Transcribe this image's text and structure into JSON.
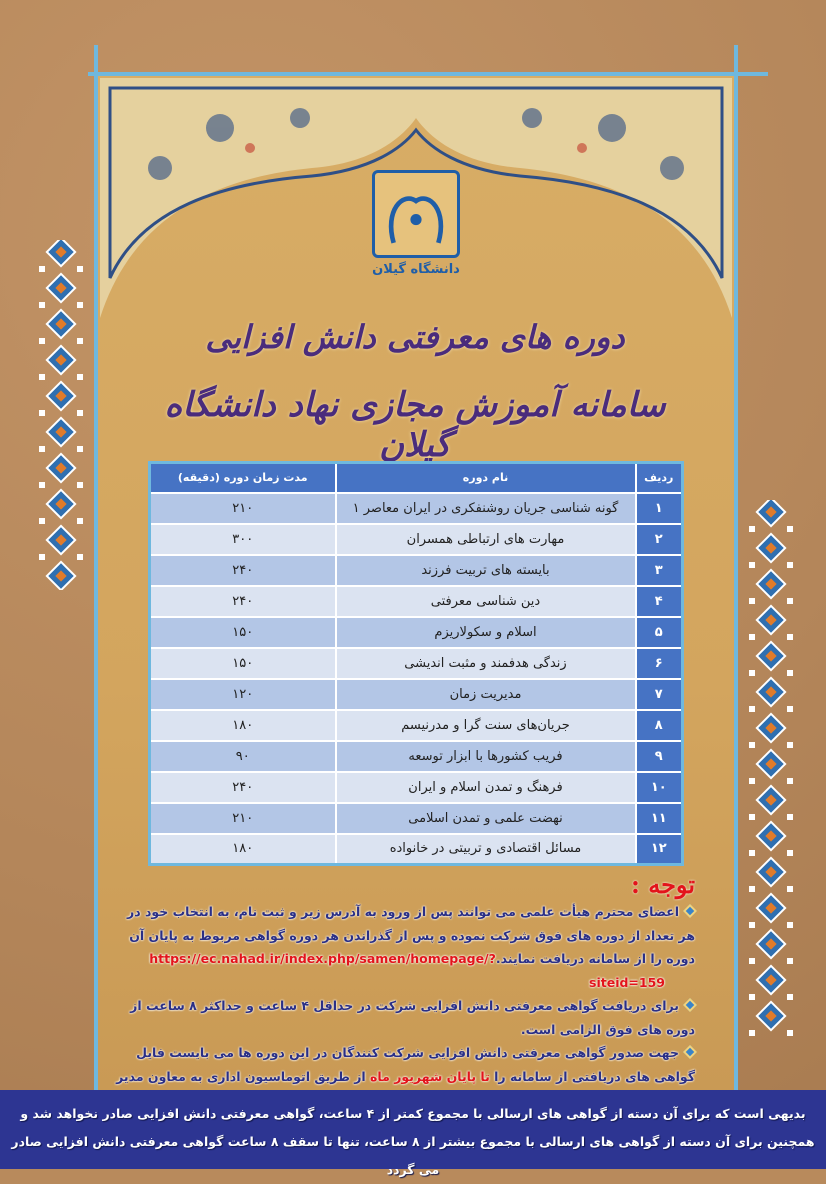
{
  "header": {
    "university_logo_text": "دانشگاه گیلان",
    "title_line1": "دوره های معرفتی دانش افزایی",
    "title_line2": "سامانه آموزش مجازی نهاد دانشگاه گیلان"
  },
  "table": {
    "columns": [
      "ردیف",
      "نام دوره",
      "مدت زمان دوره (دقیقه)"
    ],
    "rows": [
      {
        "num": "۱",
        "name": "گونه شناسی جریان روشنفکری در ایران معاصر ۱",
        "duration": "۲۱۰"
      },
      {
        "num": "۲",
        "name": "مهارت های ارتباطی همسران",
        "duration": "۳۰۰"
      },
      {
        "num": "۳",
        "name": "بایسته های تربیت فرزند",
        "duration": "۲۴۰"
      },
      {
        "num": "۴",
        "name": "دین شناسی معرفتی",
        "duration": "۲۴۰"
      },
      {
        "num": "۵",
        "name": "اسلام و سکولاریزم",
        "duration": "۱۵۰"
      },
      {
        "num": "۶",
        "name": "زندگی هدفمند و مثبت اندیشی",
        "duration": "۱۵۰"
      },
      {
        "num": "۷",
        "name": "مدیریت زمان",
        "duration": "۱۲۰"
      },
      {
        "num": "۸",
        "name": "جریان‌های سنت گرا و مدرنیسم",
        "duration": "۱۸۰"
      },
      {
        "num": "۹",
        "name": "فریب کشورها با ابزار توسعه",
        "duration": "۹۰"
      },
      {
        "num": "۱۰",
        "name": "فرهنگ و تمدن اسلام و ایران",
        "duration": "۲۴۰"
      },
      {
        "num": "۱۱",
        "name": "نهضت علمی و تمدن اسلامی",
        "duration": "۲۱۰"
      },
      {
        "num": "۱۲",
        "name": "مسائل اقتصادی و تربیتی در خانواده",
        "duration": "۱۸۰"
      }
    ]
  },
  "notes": {
    "title": "توجه :",
    "note1": "اعضای محترم هیأت علمی می توانند پس از ورود به آدرس زیر و ثبت نام، به انتخاب خود در هر تعداد از دوره های فوق شرکت نموده و پس از گذراندن هر دوره گواهی مربوط به پایان آن  دوره را از سامانه دریافت نمایند.",
    "url": "https://ec.nahad.ir/index.php/samen/homepage/?siteid=159",
    "note2": "برای دریافت گواهی معرفتی دانش افزایی شرکت در حداقل ۴ ساعت و حداکثر ۸ ساعت از دوره های فوق الزامی است.",
    "note3_a": "جهت صدور گواهی معرفتی دانش افزایی شرکت کنندگان در این دوره ها می بایست فایل گواهی های دریافتی از سامانه را ",
    "note3_highlight": "تا پایان شهریور ماه",
    "note3_b": " از طریق اتوماسیون اداری به معاون مدیر امور آموزشی ارسال نمایند."
  },
  "footer": {
    "line1": "بدیهی است که برای آن دسته از گواهی های ارسالی با مجموع کمتر از ۴ ساعت، گواهی معرفتی دانش افزایی صادر نخواهد شد و",
    "line2": "همچنین برای آن دسته از گواهی های ارسالی با مجموع بیشتر از ۸ ساعت، تنها تا سقف ۸ ساعت گواهی معرفتی دانش افزایی صادر می گردد"
  },
  "colors": {
    "background": "#b88a5c",
    "panel": "#d8ad66",
    "frame_line": "#6fb8de",
    "title": "#4a2c7c",
    "table_header": "#4673c4",
    "row_dark": "#b3c6e6",
    "row_light": "#dbe3f1",
    "note_text": "#2a2f86",
    "highlight": "#e3141b",
    "footer_band": "#2d3592"
  }
}
